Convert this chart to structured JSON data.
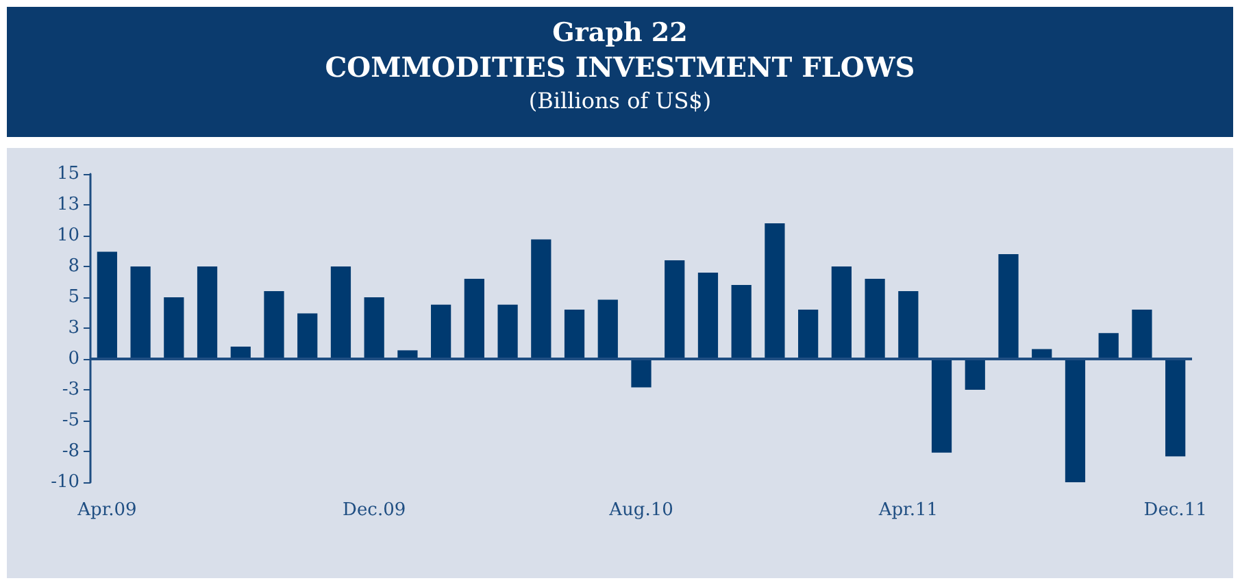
{
  "chart_data": {
    "type": "bar",
    "title": "Graph 22",
    "subtitle": "COMMODITIES INVESTMENT FLOWS",
    "ylabel": "(Billions of US$)",
    "categories": [
      "Apr.09",
      null,
      null,
      null,
      null,
      null,
      null,
      null,
      "Dec.09",
      null,
      null,
      null,
      null,
      null,
      null,
      null,
      "Aug.10",
      null,
      null,
      null,
      null,
      null,
      null,
      null,
      "Apr.11",
      null,
      null,
      null,
      null,
      null,
      null,
      null,
      "Dec.11"
    ],
    "values": [
      8.7,
      7.5,
      5.0,
      7.5,
      1.0,
      5.5,
      3.7,
      7.5,
      5.0,
      0.7,
      4.4,
      6.5,
      4.4,
      9.7,
      4.0,
      4.8,
      -2.3,
      8.0,
      7.0,
      6.0,
      11.0,
      4.0,
      7.5,
      6.5,
      5.5,
      -7.6,
      -2.5,
      8.5,
      0.8,
      -10.0,
      2.1,
      4.0,
      -7.9
    ],
    "color": "#003a70",
    "ylim": [
      -10,
      15
    ],
    "yticks": [
      -10,
      {
        "value": -7.5,
        "label": "-8"
      },
      -5,
      {
        "value": -2.5,
        "label": "-3"
      },
      0,
      {
        "value": 2.5,
        "label": "3"
      },
      5,
      {
        "value": 7.5,
        "label": "8"
      },
      10,
      {
        "value": 12.5,
        "label": "13"
      },
      15
    ],
    "ref_lines": [
      {
        "axis": "y",
        "value": 0,
        "color": "#1f4e82"
      }
    ],
    "grid": false
  }
}
